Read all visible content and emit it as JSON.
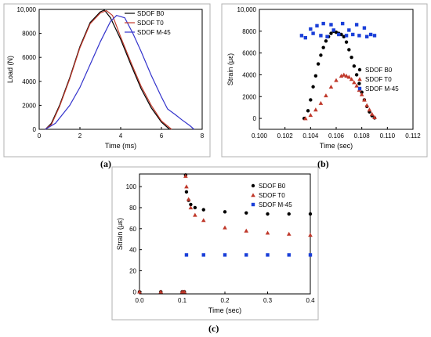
{
  "panels": [
    {
      "caption": "(a)",
      "chart_data": {
        "type": "line",
        "title": "",
        "xlabel": "Time (ms)",
        "ylabel": "Load (N)",
        "xlim": [
          0,
          8
        ],
        "ylim": [
          0,
          10000
        ],
        "xticks": [
          "0",
          "2",
          "4",
          "6",
          "8"
        ],
        "yticks": [
          "0",
          "2000",
          "4000",
          "6000",
          "8000",
          "10,000"
        ],
        "legend_position": "top-right",
        "grid": false,
        "series": [
          {
            "name": "SDOF B0",
            "color": "#000000",
            "x": [
              0.3,
              0.6,
              1.0,
              1.5,
              2.0,
              2.5,
              3.0,
              3.2,
              3.5,
              4.0,
              4.5,
              5.0,
              5.5,
              6.0,
              6.4
            ],
            "y": [
              0,
              500,
              2000,
              4300,
              6900,
              8900,
              9800,
              9950,
              9300,
              7500,
              5400,
              3400,
              1800,
              600,
              0
            ]
          },
          {
            "name": "SDOF T0",
            "color": "#c0392b",
            "x": [
              0.3,
              0.6,
              1.0,
              1.5,
              2.0,
              2.5,
              3.0,
              3.3,
              3.6,
              4.0,
              4.5,
              5.0,
              5.5,
              6.0,
              6.5
            ],
            "y": [
              0,
              400,
              1900,
              4200,
              6800,
              8800,
              9700,
              9900,
              9500,
              7700,
              5600,
              3600,
              2000,
              700,
              0
            ]
          },
          {
            "name": "SDOF M-45",
            "color": "#3333cc",
            "x": [
              0.3,
              0.8,
              1.5,
              2.0,
              2.5,
              3.0,
              3.5,
              3.8,
              4.2,
              4.6,
              5.0,
              5.5,
              6.0,
              6.3,
              6.7,
              7.0,
              7.4,
              7.6
            ],
            "y": [
              0,
              500,
              2000,
              3500,
              5400,
              7300,
              9000,
              9500,
              9300,
              8000,
              6500,
              4500,
              2700,
              1700,
              1200,
              800,
              300,
              0
            ]
          }
        ]
      }
    },
    {
      "caption": "(b)",
      "chart_data": {
        "type": "scatter",
        "title": "",
        "xlabel": "Time (sec)",
        "ylabel": "Strain (με)",
        "xlim": [
          0.1,
          0.112
        ],
        "ylim": [
          -1000,
          10000
        ],
        "xticks": [
          "0.100",
          "0.102",
          "0.104",
          "0.106",
          "0.108",
          "0.110",
          "0.112"
        ],
        "yticks": [
          "0",
          "2000",
          "4000",
          "6000",
          "8000",
          "10,000"
        ],
        "legend_position": "right",
        "grid": false,
        "series": [
          {
            "name": "SDOF B0",
            "color": "#000000",
            "marker": "circle",
            "x": [
              0.1035,
              0.1038,
              0.104,
              0.1042,
              0.1044,
              0.1046,
              0.1048,
              0.105,
              0.1052,
              0.1054,
              0.1056,
              0.1058,
              0.106,
              0.1062,
              0.1064,
              0.1066,
              0.1068,
              0.107,
              0.1072,
              0.1074,
              0.1076,
              0.1078,
              0.108,
              0.1082,
              0.1084,
              0.1086,
              0.1088,
              0.109
            ],
            "y": [
              0,
              700,
              1700,
              2900,
              3900,
              5000,
              5800,
              6500,
              7100,
              7500,
              7800,
              8000,
              7900,
              7800,
              7700,
              7500,
              7000,
              6300,
              5600,
              4800,
              4000,
              3200,
              2400,
              1700,
              1100,
              600,
              250,
              50
            ]
          },
          {
            "name": "SDOF T0",
            "color": "#c0392b",
            "marker": "triangle",
            "x": [
              0.1036,
              0.104,
              0.1044,
              0.1048,
              0.1052,
              0.1056,
              0.106,
              0.1064,
              0.1066,
              0.1068,
              0.107,
              0.1072,
              0.1074,
              0.1076,
              0.1078,
              0.108,
              0.1082,
              0.1084,
              0.1086,
              0.1088,
              0.109
            ],
            "y": [
              0,
              300,
              800,
              1400,
              2100,
              2900,
              3500,
              3900,
              4000,
              3900,
              3800,
              3600,
              3300,
              3000,
              2600,
              2200,
              1700,
              1200,
              800,
              400,
              100
            ]
          },
          {
            "name": "SDOF M-45",
            "color": "#1a3fd8",
            "marker": "square",
            "x": [
              0.1033,
              0.1036,
              0.104,
              0.1042,
              0.1045,
              0.1048,
              0.105,
              0.1053,
              0.1056,
              0.1058,
              0.1062,
              0.1065,
              0.1068,
              0.107,
              0.1073,
              0.1076,
              0.1078,
              0.1082,
              0.1084,
              0.1087,
              0.109
            ],
            "y": [
              7600,
              7400,
              8200,
              7800,
              8500,
              7600,
              8700,
              7500,
              8600,
              8100,
              7700,
              8700,
              7600,
              8100,
              7700,
              8600,
              7600,
              8300,
              7500,
              7700,
              7600
            ]
          }
        ]
      }
    },
    {
      "caption": "(c)",
      "chart_data": {
        "type": "scatter",
        "title": "",
        "xlabel": "Time (sec)",
        "ylabel": "Strain (με)",
        "xlim": [
          0,
          0.4
        ],
        "ylim": [
          -2,
          112
        ],
        "xticks": [
          "0.0",
          "0.1",
          "0.2",
          "0.3",
          "0.4"
        ],
        "yticks": [
          "0",
          "20",
          "40",
          "60",
          "80",
          "100"
        ],
        "legend_position": "top-right",
        "grid": false,
        "series": [
          {
            "name": "SDOF B0",
            "color": "#000000",
            "marker": "circle",
            "x": [
              0.0,
              0.05,
              0.1,
              0.105,
              0.108,
              0.11,
              0.115,
              0.12,
              0.13,
              0.15,
              0.2,
              0.25,
              0.3,
              0.35,
              0.4
            ],
            "y": [
              0,
              0,
              0,
              0,
              111,
              95,
              87,
              83,
              80,
              78,
              76,
              75,
              74,
              74,
              74
            ]
          },
          {
            "name": "SDOF T0",
            "color": "#c0392b",
            "marker": "triangle",
            "x": [
              0.0,
              0.05,
              0.1,
              0.105,
              0.108,
              0.11,
              0.115,
              0.12,
              0.13,
              0.15,
              0.2,
              0.25,
              0.3,
              0.35,
              0.4
            ],
            "y": [
              0,
              0,
              0,
              0,
              110,
              100,
              88,
              80,
              73,
              68,
              61,
              58,
              56,
              55,
              54
            ]
          },
          {
            "name": "SDOF M-45",
            "color": "#1a3fd8",
            "marker": "square",
            "x": [
              0.11,
              0.15,
              0.2,
              0.25,
              0.3,
              0.35,
              0.4
            ],
            "y": [
              35,
              35,
              35,
              35,
              35,
              35,
              35
            ]
          }
        ]
      }
    }
  ]
}
